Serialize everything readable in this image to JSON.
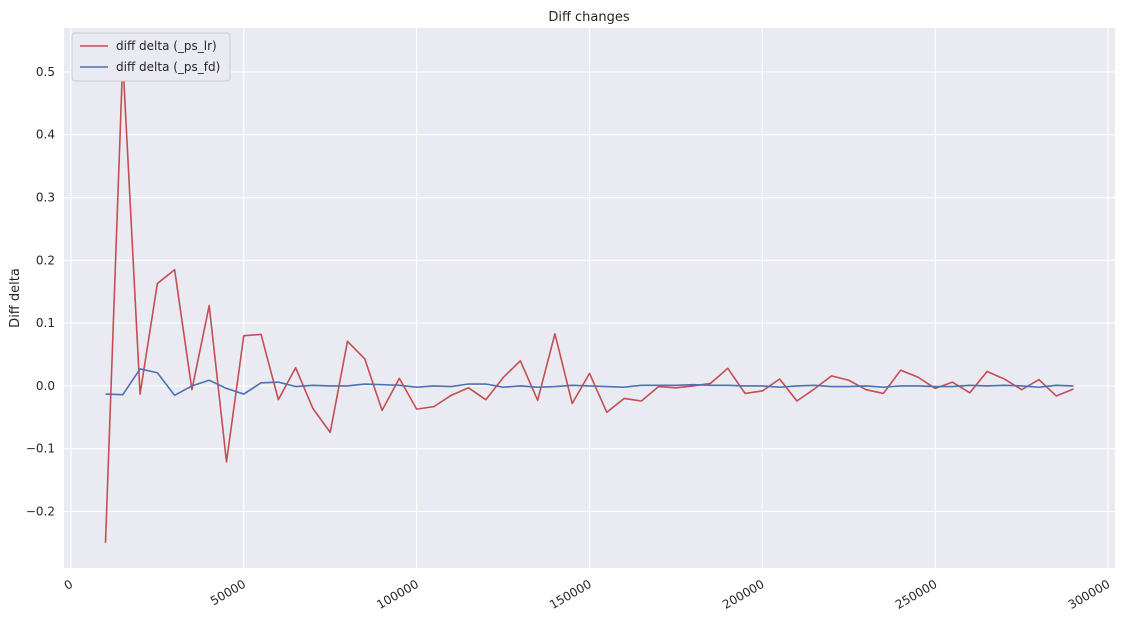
{
  "chart_data": {
    "type": "line",
    "title": "Diff changes",
    "xlabel": "",
    "ylabel": "Diff delta",
    "xlim": [
      -2000,
      302000
    ],
    "ylim": [
      -0.29,
      0.57
    ],
    "x_ticks": [
      0,
      50000,
      100000,
      150000,
      200000,
      250000,
      300000
    ],
    "y_ticks": [
      -0.2,
      -0.1,
      0.0,
      0.1,
      0.2,
      0.3,
      0.4,
      0.5
    ],
    "x_tick_labels": [
      "0",
      "50000",
      "100000",
      "150000",
      "200000",
      "250000",
      "300000"
    ],
    "y_tick_labels": [
      "−0.2",
      "−0.1",
      "0.0",
      "0.1",
      "0.2",
      "0.3",
      "0.4",
      "0.5"
    ],
    "x_tick_rotation": 30,
    "grid": true,
    "legend_position": "top-left",
    "background_color": "#eaeaf2",
    "grid_color": "#ffffff",
    "x": [
      10000,
      15000,
      20000,
      25000,
      30000,
      35000,
      40000,
      45000,
      50000,
      55000,
      60000,
      65000,
      70000,
      75000,
      80000,
      85000,
      90000,
      95000,
      100000,
      105000,
      110000,
      115000,
      120000,
      125000,
      130000,
      135000,
      140000,
      145000,
      150000,
      155000,
      160000,
      165000,
      170000,
      175000,
      180000,
      185000,
      190000,
      195000,
      200000,
      205000,
      210000,
      215000,
      220000,
      225000,
      230000,
      235000,
      240000,
      245000,
      250000,
      255000,
      260000,
      265000,
      270000,
      275000,
      280000,
      285000,
      290000
    ],
    "series": [
      {
        "name": "diff delta (_ps_lr)",
        "color": "#c44e52",
        "values": [
          -0.25,
          0.52,
          -0.013,
          0.163,
          0.185,
          -0.006,
          0.128,
          -0.121,
          0.08,
          0.082,
          -0.022,
          0.029,
          -0.036,
          -0.074,
          0.071,
          0.043,
          -0.039,
          0.012,
          -0.037,
          -0.033,
          -0.015,
          -0.003,
          -0.022,
          0.013,
          0.04,
          -0.023,
          0.083,
          -0.028,
          0.02,
          -0.042,
          -0.02,
          -0.024,
          -0.001,
          -0.003,
          0.0,
          0.004,
          0.028,
          -0.012,
          -0.008,
          0.011,
          -0.024,
          -0.005,
          0.016,
          0.009,
          -0.006,
          -0.012,
          0.025,
          0.014,
          -0.004,
          0.006,
          -0.011,
          0.023,
          0.011,
          -0.006,
          0.01,
          -0.016,
          -0.005
        ]
      },
      {
        "name": "diff delta (_ps_fd)",
        "color": "#4c72b0",
        "values": [
          -0.013,
          -0.014,
          0.027,
          0.021,
          -0.015,
          0.0,
          0.009,
          -0.004,
          -0.013,
          0.005,
          0.006,
          -0.001,
          0.001,
          0.0,
          0.0,
          0.003,
          0.002,
          0.001,
          -0.002,
          0.0,
          -0.001,
          0.003,
          0.003,
          -0.002,
          0.0,
          -0.002,
          -0.001,
          0.001,
          0.0,
          -0.001,
          -0.002,
          0.001,
          0.001,
          0.001,
          0.002,
          0.001,
          0.001,
          0.0,
          0.0,
          -0.002,
          0.0,
          0.001,
          -0.001,
          -0.001,
          0.0,
          -0.002,
          0.0,
          0.0,
          -0.001,
          -0.001,
          0.001,
          0.0,
          0.001,
          0.0,
          -0.002,
          0.001,
          0.0
        ]
      }
    ]
  }
}
